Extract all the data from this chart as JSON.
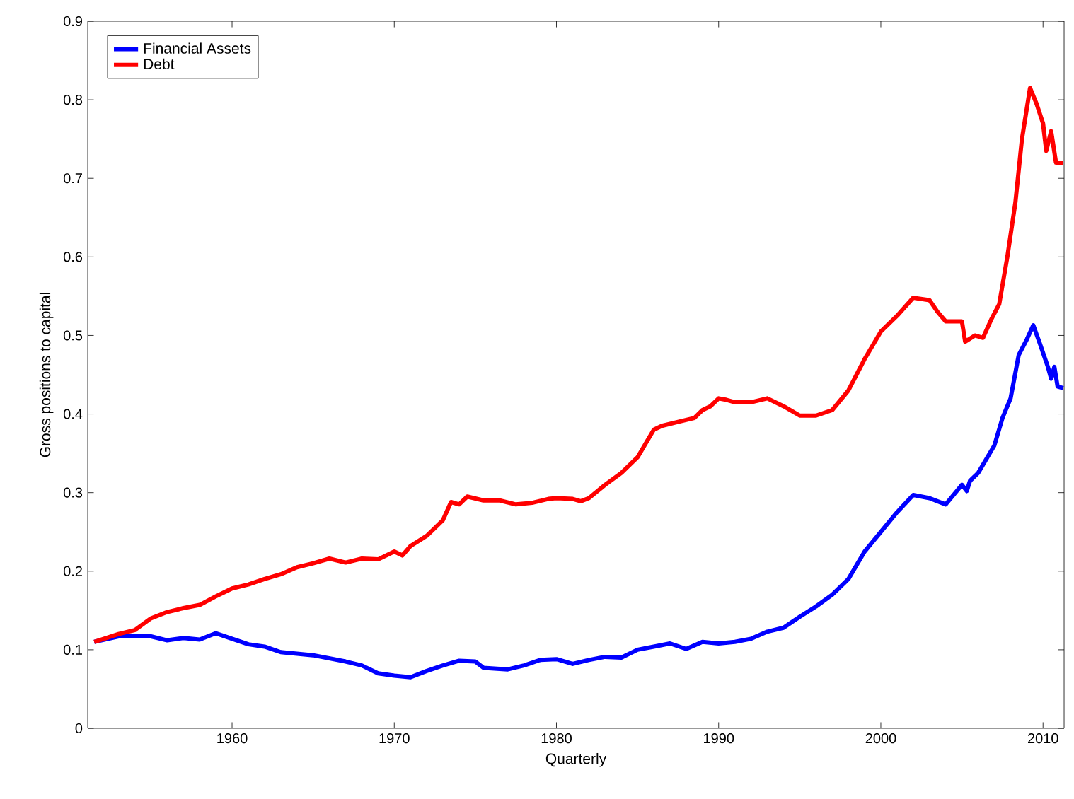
{
  "chart_data": {
    "type": "line",
    "xlabel": "Quarterly",
    "ylabel": "Gross positions to capital",
    "xlim": [
      1951.1,
      2011.3
    ],
    "ylim": [
      0,
      0.9
    ],
    "xticks": [
      1960,
      1970,
      1980,
      1990,
      2000,
      2010
    ],
    "yticks": [
      0,
      0.1,
      0.2,
      0.3,
      0.4,
      0.5,
      0.6,
      0.7,
      0.8,
      0.9
    ],
    "grid": false,
    "legend": "top left",
    "marker": "none",
    "line_style": "solid",
    "series": [
      {
        "name": "Financial Assets",
        "color": "#0000ff",
        "x": [
          1951.5,
          1953,
          1955,
          1956,
          1957,
          1958,
          1959,
          1960,
          1961,
          1962,
          1963,
          1965,
          1967,
          1968,
          1969,
          1970,
          1971,
          1972,
          1973,
          1974,
          1975,
          1975.5,
          1977,
          1978,
          1979,
          1980,
          1981,
          1982,
          1983,
          1984,
          1985,
          1986,
          1987,
          1988,
          1989,
          1990,
          1991,
          1992,
          1993,
          1994,
          1995,
          1996,
          1997,
          1998,
          1999,
          2000,
          2001,
          2002,
          2003,
          2004,
          2005,
          2005.3,
          2005.5,
          2006,
          2007,
          2007.5,
          2008,
          2008.5,
          2009,
          2009.4,
          2009.8,
          2010.3,
          2010.5,
          2010.7,
          2010.9,
          2011.25
        ],
        "values": [
          0.11,
          0.117,
          0.117,
          0.112,
          0.115,
          0.113,
          0.121,
          0.114,
          0.107,
          0.104,
          0.097,
          0.093,
          0.085,
          0.08,
          0.07,
          0.067,
          0.065,
          0.073,
          0.08,
          0.086,
          0.085,
          0.077,
          0.075,
          0.08,
          0.087,
          0.088,
          0.082,
          0.087,
          0.091,
          0.09,
          0.1,
          0.104,
          0.108,
          0.101,
          0.11,
          0.108,
          0.11,
          0.114,
          0.123,
          0.128,
          0.142,
          0.155,
          0.17,
          0.19,
          0.225,
          0.25,
          0.275,
          0.297,
          0.293,
          0.285,
          0.31,
          0.302,
          0.315,
          0.325,
          0.36,
          0.395,
          0.42,
          0.475,
          0.495,
          0.513,
          0.49,
          0.46,
          0.445,
          0.46,
          0.435,
          0.433
        ]
      },
      {
        "name": "Debt",
        "color": "#ff0000",
        "x": [
          1951.5,
          1953,
          1954,
          1955,
          1956,
          1957,
          1958,
          1959,
          1960,
          1961,
          1962,
          1963,
          1964,
          1965,
          1966,
          1967,
          1968,
          1969,
          1970,
          1970.5,
          1971,
          1972,
          1973,
          1973.5,
          1974,
          1974.5,
          1975.5,
          1976.5,
          1977.5,
          1978.5,
          1979.5,
          1980,
          1981,
          1981.5,
          1982,
          1983,
          1984,
          1985,
          1986,
          1986.5,
          1987.5,
          1988.5,
          1989,
          1989.5,
          1990,
          1990.5,
          1991,
          1992,
          1993,
          1994,
          1995,
          1996,
          1997,
          1998,
          1999,
          2000,
          2001,
          2002,
          2003,
          2003.5,
          2004,
          2005,
          2005.2,
          2005.8,
          2006.3,
          2006.8,
          2007.3,
          2007.8,
          2008.3,
          2008.7,
          2009.2,
          2009.6,
          2010,
          2010.2,
          2010.5,
          2010.8,
          2011.25
        ],
        "values": [
          0.11,
          0.12,
          0.125,
          0.14,
          0.148,
          0.153,
          0.157,
          0.168,
          0.178,
          0.183,
          0.19,
          0.196,
          0.205,
          0.21,
          0.216,
          0.211,
          0.216,
          0.215,
          0.225,
          0.22,
          0.232,
          0.245,
          0.265,
          0.288,
          0.285,
          0.295,
          0.29,
          0.29,
          0.285,
          0.287,
          0.292,
          0.293,
          0.292,
          0.289,
          0.293,
          0.31,
          0.325,
          0.345,
          0.38,
          0.385,
          0.39,
          0.395,
          0.405,
          0.41,
          0.42,
          0.418,
          0.415,
          0.415,
          0.42,
          0.41,
          0.398,
          0.398,
          0.405,
          0.43,
          0.47,
          0.505,
          0.525,
          0.548,
          0.545,
          0.53,
          0.518,
          0.518,
          0.492,
          0.5,
          0.497,
          0.52,
          0.54,
          0.6,
          0.67,
          0.75,
          0.815,
          0.795,
          0.77,
          0.735,
          0.76,
          0.72,
          0.72
        ]
      }
    ]
  }
}
